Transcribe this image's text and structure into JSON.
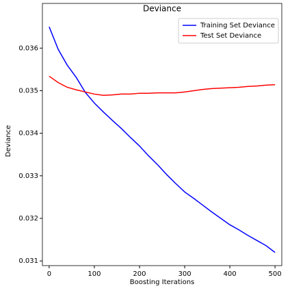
{
  "chart_data": {
    "type": "line",
    "title": "Deviance",
    "x_label": "Boosting Iterations",
    "y_label": "Deviance",
    "x": [
      0,
      20,
      40,
      60,
      80,
      100,
      120,
      140,
      160,
      180,
      200,
      220,
      240,
      260,
      280,
      300,
      320,
      340,
      360,
      380,
      400,
      420,
      440,
      460,
      480,
      500
    ],
    "series": [
      {
        "name": "Training Set Deviance",
        "color": "#0000ff",
        "values": [
          0.0365,
          0.03597,
          0.0356,
          0.03531,
          0.03496,
          0.03471,
          0.0345,
          0.0343,
          0.03411,
          0.0339,
          0.0337,
          0.03347,
          0.03326,
          0.03303,
          0.03282,
          0.03262,
          0.03247,
          0.03231,
          0.03215,
          0.032,
          0.03185,
          0.03173,
          0.0316,
          0.03148,
          0.03136,
          0.0312
        ]
      },
      {
        "name": "Test Set Deviance",
        "color": "#ff0000",
        "values": [
          0.03534,
          0.03519,
          0.03508,
          0.03502,
          0.03497,
          0.03492,
          0.03489,
          0.0349,
          0.03492,
          0.03492,
          0.03494,
          0.03494,
          0.03495,
          0.03495,
          0.03495,
          0.03497,
          0.035,
          0.03503,
          0.03505,
          0.03506,
          0.03507,
          0.03508,
          0.0351,
          0.03511,
          0.03513,
          0.03514
        ]
      }
    ],
    "xlim": [
      -15,
      515
    ],
    "ylim": [
      0.03089,
      0.03705
    ],
    "xticks": [
      0,
      100,
      200,
      300,
      400,
      500
    ],
    "yticks": [
      0.031,
      0.032,
      0.033,
      0.034,
      0.035,
      0.036
    ],
    "legend": "upper right"
  }
}
